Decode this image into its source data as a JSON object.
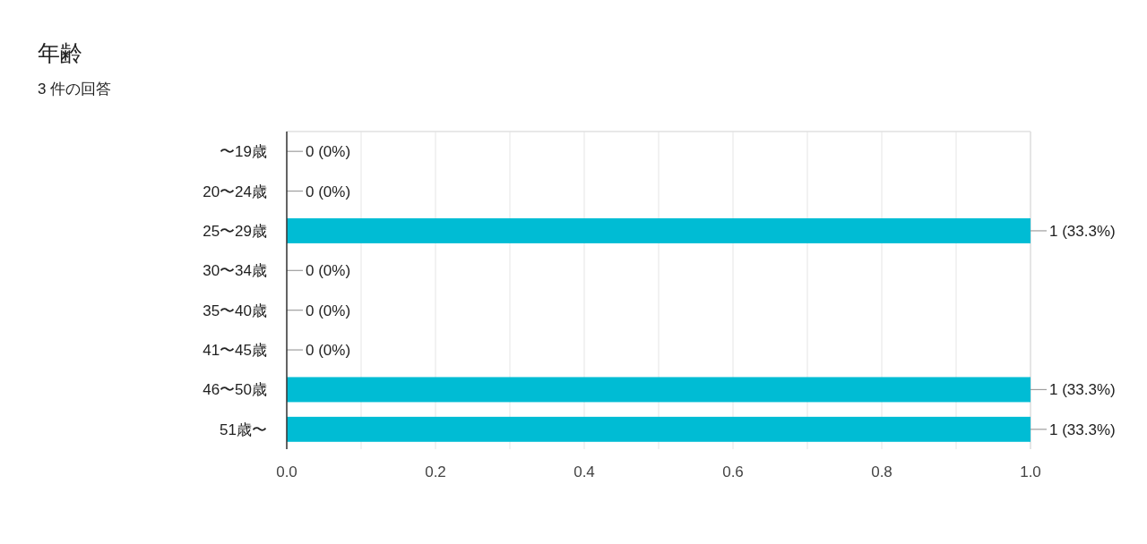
{
  "chart_data": {
    "type": "bar",
    "orientation": "horizontal",
    "title": "年齢",
    "subtitle": "3 件の回答",
    "categories": [
      "〜19歳",
      "20〜24歳",
      "25〜29歳",
      "30〜34歳",
      "35〜40歳",
      "41〜45歳",
      "46〜50歳",
      "51歳〜"
    ],
    "values": [
      0,
      0,
      1,
      0,
      0,
      0,
      1,
      1
    ],
    "value_labels": [
      "0 (0%)",
      "0 (0%)",
      "1 (33.3%)",
      "0 (0%)",
      "0 (0%)",
      "0 (0%)",
      "1 (33.3%)",
      "1 (33.3%)"
    ],
    "color": "#00bcd4",
    "xlim": [
      0,
      1
    ],
    "xticks": [
      {
        "value": 0,
        "label": "0.0"
      },
      {
        "value": 0.1,
        "label": null
      },
      {
        "value": 0.2,
        "label": "0.2"
      },
      {
        "value": 0.3,
        "label": null
      },
      {
        "value": 0.4,
        "label": "0.4"
      },
      {
        "value": 0.5,
        "label": null
      },
      {
        "value": 0.6,
        "label": "0.6"
      },
      {
        "value": 0.7,
        "label": null
      },
      {
        "value": 0.8,
        "label": "0.8"
      },
      {
        "value": 0.9,
        "label": null
      },
      {
        "value": 1,
        "label": "1.0"
      }
    ],
    "grid": "x"
  }
}
